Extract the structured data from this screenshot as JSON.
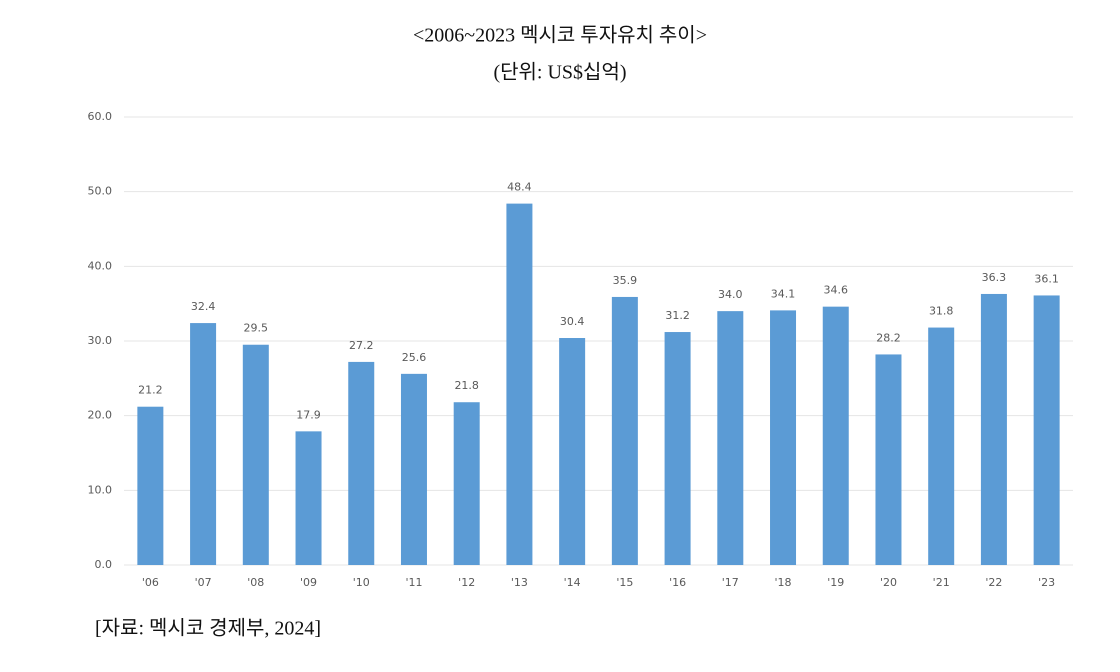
{
  "chart_data": {
    "type": "bar",
    "title": "<2006~2023 멕시코 투자유치 추이>",
    "subtitle": "(단위: US$십억)",
    "source": "[자료: 멕시코 경제부, 2024]",
    "categories": [
      "'06",
      "'07",
      "'08",
      "'09",
      "'10",
      "'11",
      "'12",
      "'13",
      "'14",
      "'15",
      "'16",
      "'17",
      "'18",
      "'19",
      "'20",
      "'21",
      "'22",
      "'23"
    ],
    "values": [
      21.2,
      32.4,
      29.5,
      17.9,
      27.2,
      25.6,
      21.8,
      48.4,
      30.4,
      35.9,
      31.2,
      34.0,
      34.1,
      34.6,
      28.2,
      31.8,
      36.3,
      36.1
    ],
    "value_labels": [
      "21.2",
      "32.4",
      "29.5",
      "17.9",
      "27.2",
      "25.6",
      "21.8",
      "48.4",
      "30.4",
      "35.9",
      "31.2",
      "34.0",
      "34.1",
      "34.6",
      "28.2",
      "31.8",
      "36.3",
      "36.1"
    ],
    "color": "#5b9bd5",
    "ylim": [
      0,
      60
    ],
    "yticks": [
      {
        "value": 0,
        "label": "0.0"
      },
      {
        "value": 10,
        "label": "10.0"
      },
      {
        "value": 20,
        "label": "20.0"
      },
      {
        "value": 30,
        "label": "30.0"
      },
      {
        "value": 40,
        "label": "40.0"
      },
      {
        "value": 50,
        "label": "50.0"
      },
      {
        "value": 60,
        "label": "60.0"
      }
    ],
    "grid": true
  }
}
